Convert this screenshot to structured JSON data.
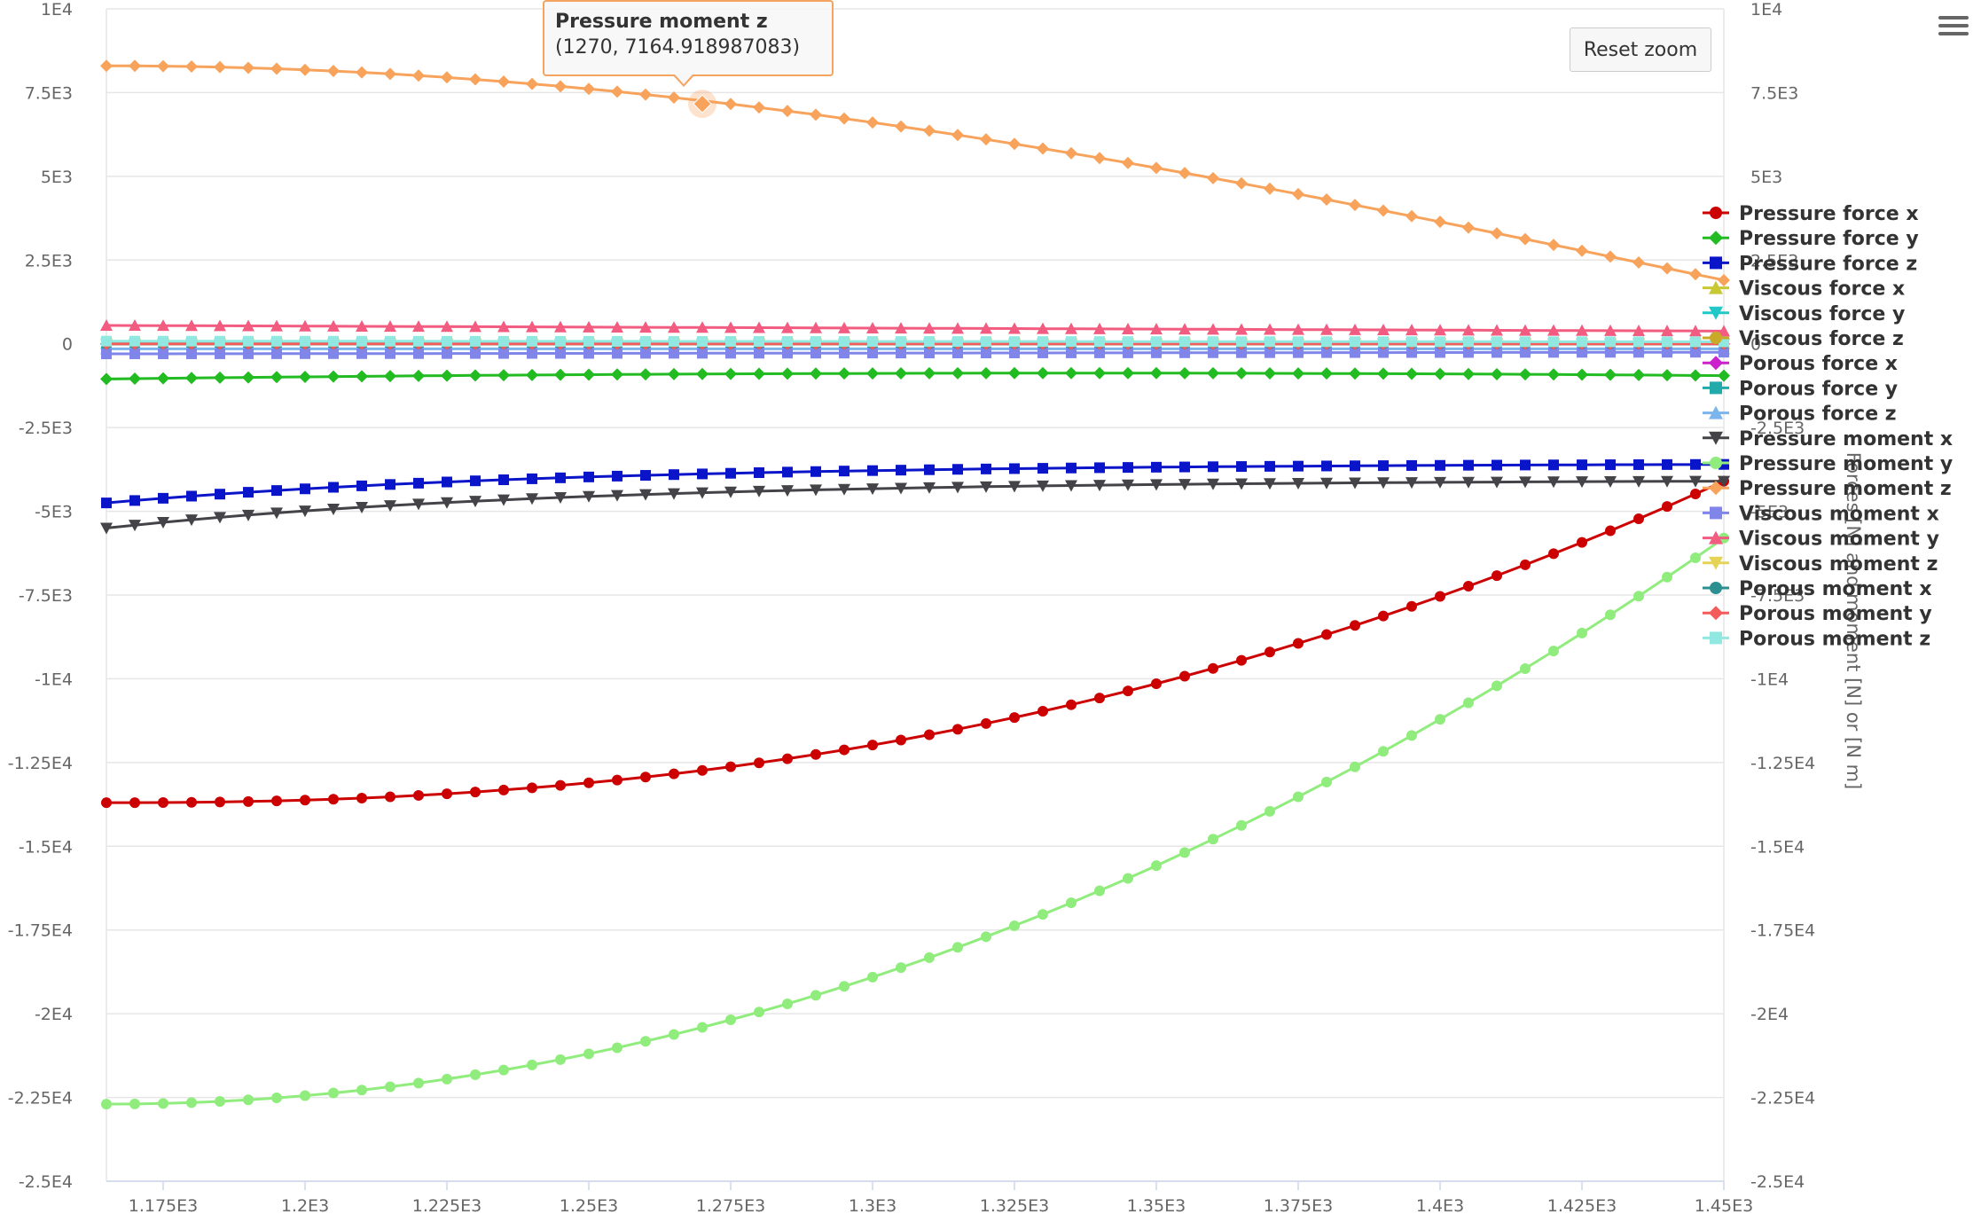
{
  "toolbar": {
    "reset_zoom_label": "Reset zoom"
  },
  "tooltip": {
    "series": "Pressure moment z",
    "point": "(1270, 7164.918987083)"
  },
  "chart_data": {
    "type": "line",
    "title": "",
    "xlabel": "",
    "ylabel": "",
    "y2label": "Forces [N] and moment [N] or [N m]",
    "xlim": [
      1165,
      1450
    ],
    "ylim": [
      -25000,
      10000
    ],
    "grid": true,
    "legend_position": "right",
    "x_ticks": [
      1175,
      1200,
      1225,
      1250,
      1275,
      1300,
      1325,
      1350,
      1375,
      1400,
      1425,
      1450
    ],
    "x_tick_labels": [
      "1.175E3",
      "1.2E3",
      "1.225E3",
      "1.25E3",
      "1.275E3",
      "1.3E3",
      "1.325E3",
      "1.35E3",
      "1.375E3",
      "1.4E3",
      "1.425E3",
      "1.45E3"
    ],
    "y_ticks": [
      10000,
      7500,
      5000,
      2500,
      0,
      -2500,
      -5000,
      -7500,
      -10000,
      -12500,
      -15000,
      -17500,
      -20000,
      -22500,
      -25000
    ],
    "y_tick_labels": [
      "1E4",
      "7.5E3",
      "5E3",
      "2.5E3",
      "0",
      "-2.5E3",
      "-5E3",
      "-7.5E3",
      "-1E4",
      "-1.25E4",
      "-1.5E4",
      "-1.75E4",
      "-2E4",
      "-2.25E4",
      "-2.5E4"
    ],
    "y2_tick_labels": [
      "1E4",
      "7.5E3",
      "5E3",
      "2.5E3",
      "0",
      "-2.5E3",
      "-5E3",
      "-7.5E3",
      "-1E4",
      "-1.25E4",
      "-1.5E4",
      "-1.75E4",
      "-2E4",
      "-2.25E4",
      "-2.5E4"
    ],
    "x_start": 1165,
    "x_step": 5,
    "x_count": 58,
    "hover_point": {
      "series": "Pressure moment z",
      "x": 1270,
      "y": 7164.918987083
    },
    "series": [
      {
        "name": "Pressure force x",
        "color": "#cc0000",
        "marker": "circle",
        "model": "poly",
        "start": -13700,
        "end": -4100,
        "p": 2.3
      },
      {
        "name": "Pressure force y",
        "color": "#22bb22",
        "marker": "diamond",
        "model": "plateau",
        "start": -1050,
        "end": -950,
        "mid": -880
      },
      {
        "name": "Pressure force z",
        "color": "#0a14c8",
        "marker": "square",
        "model": "concave",
        "start": -4750,
        "end": -3600,
        "k": 0.28
      },
      {
        "name": "Viscous force x",
        "color": "#c8c832",
        "marker": "triangle",
        "model": "flat",
        "start": 0,
        "end": 0
      },
      {
        "name": "Viscous force y",
        "color": "#22c8c8",
        "marker": "triangle-down",
        "model": "flat",
        "start": 0,
        "end": 0
      },
      {
        "name": "Viscous force z",
        "color": "#c8aa28",
        "marker": "circle",
        "model": "flat",
        "start": 0,
        "end": 0
      },
      {
        "name": "Porous force x",
        "color": "#cc22cc",
        "marker": "diamond",
        "model": "flat",
        "start": 0,
        "end": 0
      },
      {
        "name": "Porous force y",
        "color": "#22aaaa",
        "marker": "square",
        "model": "flat",
        "start": 0,
        "end": 0
      },
      {
        "name": "Porous force z",
        "color": "#7cb5ec",
        "marker": "triangle",
        "model": "flat",
        "start": -150,
        "end": -150
      },
      {
        "name": "Pressure moment x",
        "color": "#434348",
        "marker": "triangle-down",
        "model": "concave",
        "start": -5500,
        "end": -4100,
        "k": 0.28
      },
      {
        "name": "Pressure moment y",
        "color": "#90ed7d",
        "marker": "circle",
        "model": "poly",
        "start": -22700,
        "end": -5800,
        "p": 2.0
      },
      {
        "name": "Pressure moment z",
        "color": "#f7a35c",
        "marker": "diamond",
        "model": "cosine",
        "start": 8300,
        "end": 1900
      },
      {
        "name": "Viscous moment x",
        "color": "#8085e9",
        "marker": "square",
        "model": "flat",
        "start": -300,
        "end": -250
      },
      {
        "name": "Viscous moment y",
        "color": "#f15c80",
        "marker": "triangle",
        "model": "flat",
        "start": 550,
        "end": 380
      },
      {
        "name": "Viscous moment z",
        "color": "#e4d354",
        "marker": "triangle-down",
        "model": "flat",
        "start": 0,
        "end": 0
      },
      {
        "name": "Porous moment x",
        "color": "#2b908f",
        "marker": "circle",
        "model": "flat",
        "start": 0,
        "end": 0
      },
      {
        "name": "Porous moment y",
        "color": "#f45b5b",
        "marker": "diamond",
        "model": "flat",
        "start": 0,
        "end": 0
      },
      {
        "name": "Porous moment z",
        "color": "#91e8e1",
        "marker": "square",
        "model": "flat",
        "start": 80,
        "end": 60
      }
    ]
  }
}
